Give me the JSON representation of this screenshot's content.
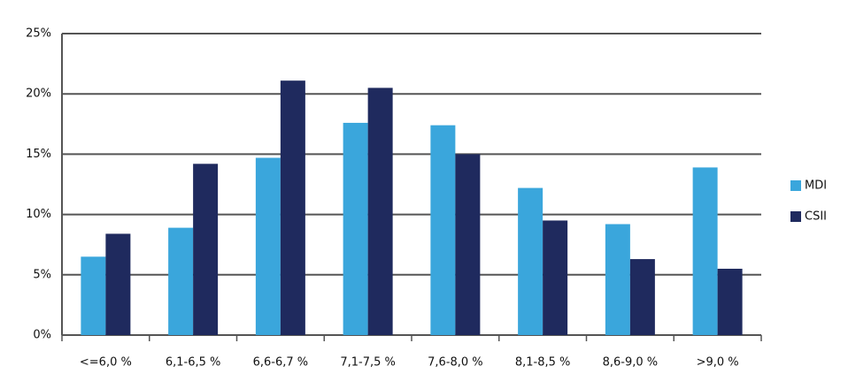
{
  "chart_data": {
    "type": "bar",
    "categories": [
      "<=6,0 %",
      "6,1-6,5 %",
      "6,6-6,7 %",
      "7,1-7,5 %",
      "7,6-8,0 %",
      "8,1-8,5 %",
      "8,6-9,0 %",
      ">9,0 %"
    ],
    "series": [
      {
        "name": "MDI",
        "color": "#3aa6dc",
        "values": [
          6.5,
          8.9,
          14.7,
          17.6,
          17.4,
          12.2,
          9.2,
          13.9
        ]
      },
      {
        "name": "CSII",
        "color": "#1f2a5e",
        "values": [
          8.4,
          14.2,
          21.1,
          20.5,
          15.0,
          9.5,
          6.3,
          5.5
        ]
      }
    ],
    "ylim": [
      0,
      25
    ],
    "yticks": [
      {
        "value": 0,
        "label": "0%"
      },
      {
        "value": 5,
        "label": "5%"
      },
      {
        "value": 10,
        "label": "10%"
      },
      {
        "value": 15,
        "label": "15%"
      },
      {
        "value": 20,
        "label": "20%"
      },
      {
        "value": 25,
        "label": "25%"
      }
    ],
    "grid": true,
    "legend": "right"
  }
}
